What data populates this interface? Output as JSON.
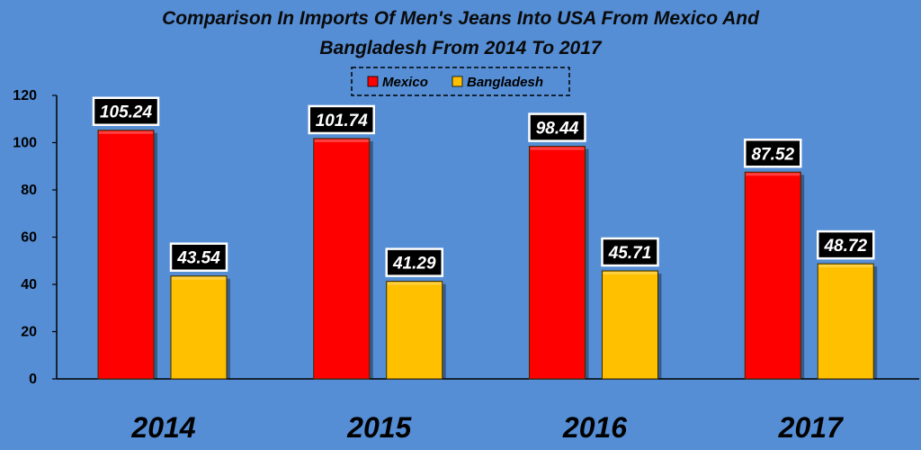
{
  "chart_data": {
    "type": "bar",
    "title_lines": [
      "Comparison In Imports Of Men's Jeans Into USA From Mexico And",
      "Bangladesh From 2014 To 2017"
    ],
    "categories": [
      "2014",
      "2015",
      "2016",
      "2017"
    ],
    "series": [
      {
        "name": "Mexico",
        "color": "#ff0000",
        "values": [
          105.24,
          101.74,
          98.44,
          87.52
        ]
      },
      {
        "name": "Bangladesh",
        "color": "#ffc000",
        "values": [
          43.54,
          41.29,
          45.71,
          48.72
        ]
      }
    ],
    "data_labels": [
      [
        "105.24",
        "101.74",
        "98.44",
        "87.52"
      ],
      [
        "43.54",
        "41.29",
        "45.71",
        "48.72"
      ]
    ],
    "ylim": [
      0,
      120
    ],
    "yticks": [
      "0",
      "20",
      "40",
      "60",
      "80",
      "100",
      "120"
    ],
    "grid": false,
    "legend_position": "top-center",
    "background_color": "#558ed5"
  }
}
